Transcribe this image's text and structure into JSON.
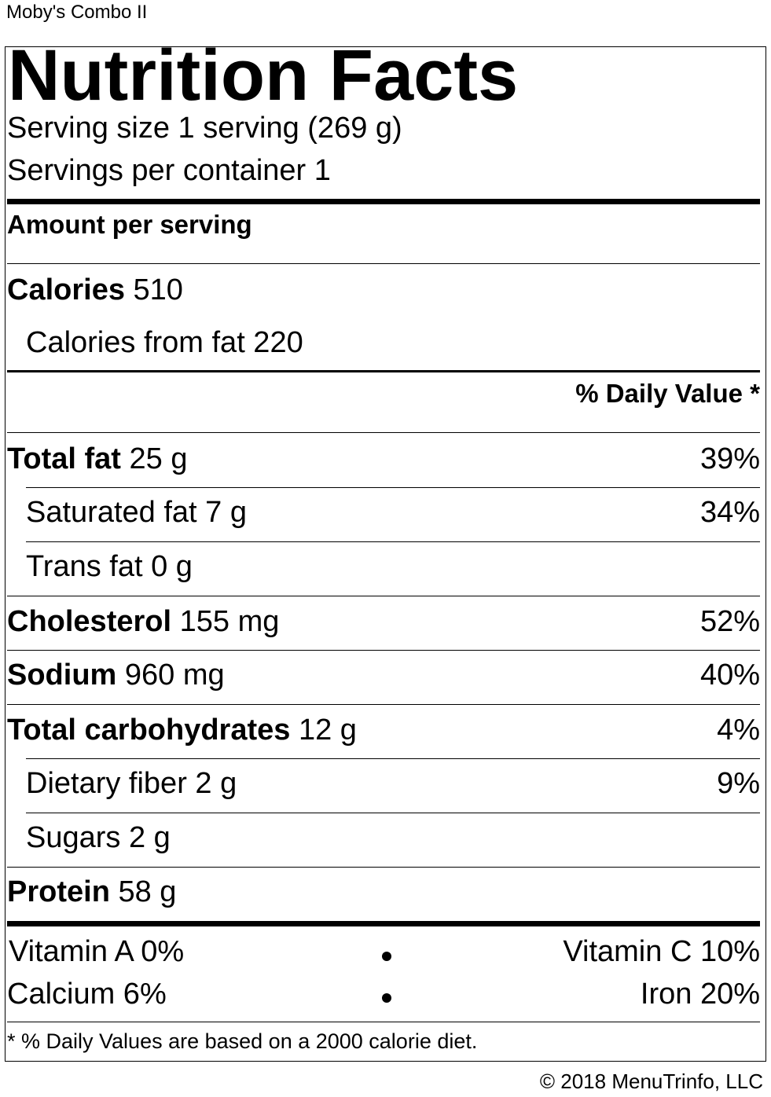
{
  "product_name": "Moby's Combo II",
  "title": "Nutrition Facts",
  "serving_size": "Serving size 1 serving (269 g)",
  "servings_per_container": "Servings per container 1",
  "amount_per_serving": "Amount per serving",
  "calories": {
    "label": "Calories",
    "value": "510"
  },
  "calories_from_fat": "Calories from fat 220",
  "daily_value_header": "% Daily Value *",
  "nutrients": {
    "total_fat": {
      "label": "Total fat",
      "amount": "25 g",
      "dv": "39%"
    },
    "saturated_fat": {
      "label": "Saturated fat 7 g",
      "dv": "34%"
    },
    "trans_fat": {
      "label": "Trans fat 0 g"
    },
    "cholesterol": {
      "label": "Cholesterol",
      "amount": "155 mg",
      "dv": "52%"
    },
    "sodium": {
      "label": "Sodium",
      "amount": "960 mg",
      "dv": "40%"
    },
    "total_carbs": {
      "label": "Total carbohydrates",
      "amount": "12 g",
      "dv": "4%"
    },
    "dietary_fiber": {
      "label": "Dietary fiber 2 g",
      "dv": "9%"
    },
    "sugars": {
      "label": "Sugars 2 g"
    },
    "protein": {
      "label": "Protein",
      "amount": "58 g"
    }
  },
  "vitamins": {
    "vitamin_a": "Vitamin A 0%",
    "vitamin_c": "Vitamin C 10%",
    "calcium": "Calcium 6%",
    "iron": "Iron 20%"
  },
  "footnote": "* % Daily Values are based on a 2000 calorie diet.",
  "copyright": "© 2018 MenuTrinfo, LLC"
}
